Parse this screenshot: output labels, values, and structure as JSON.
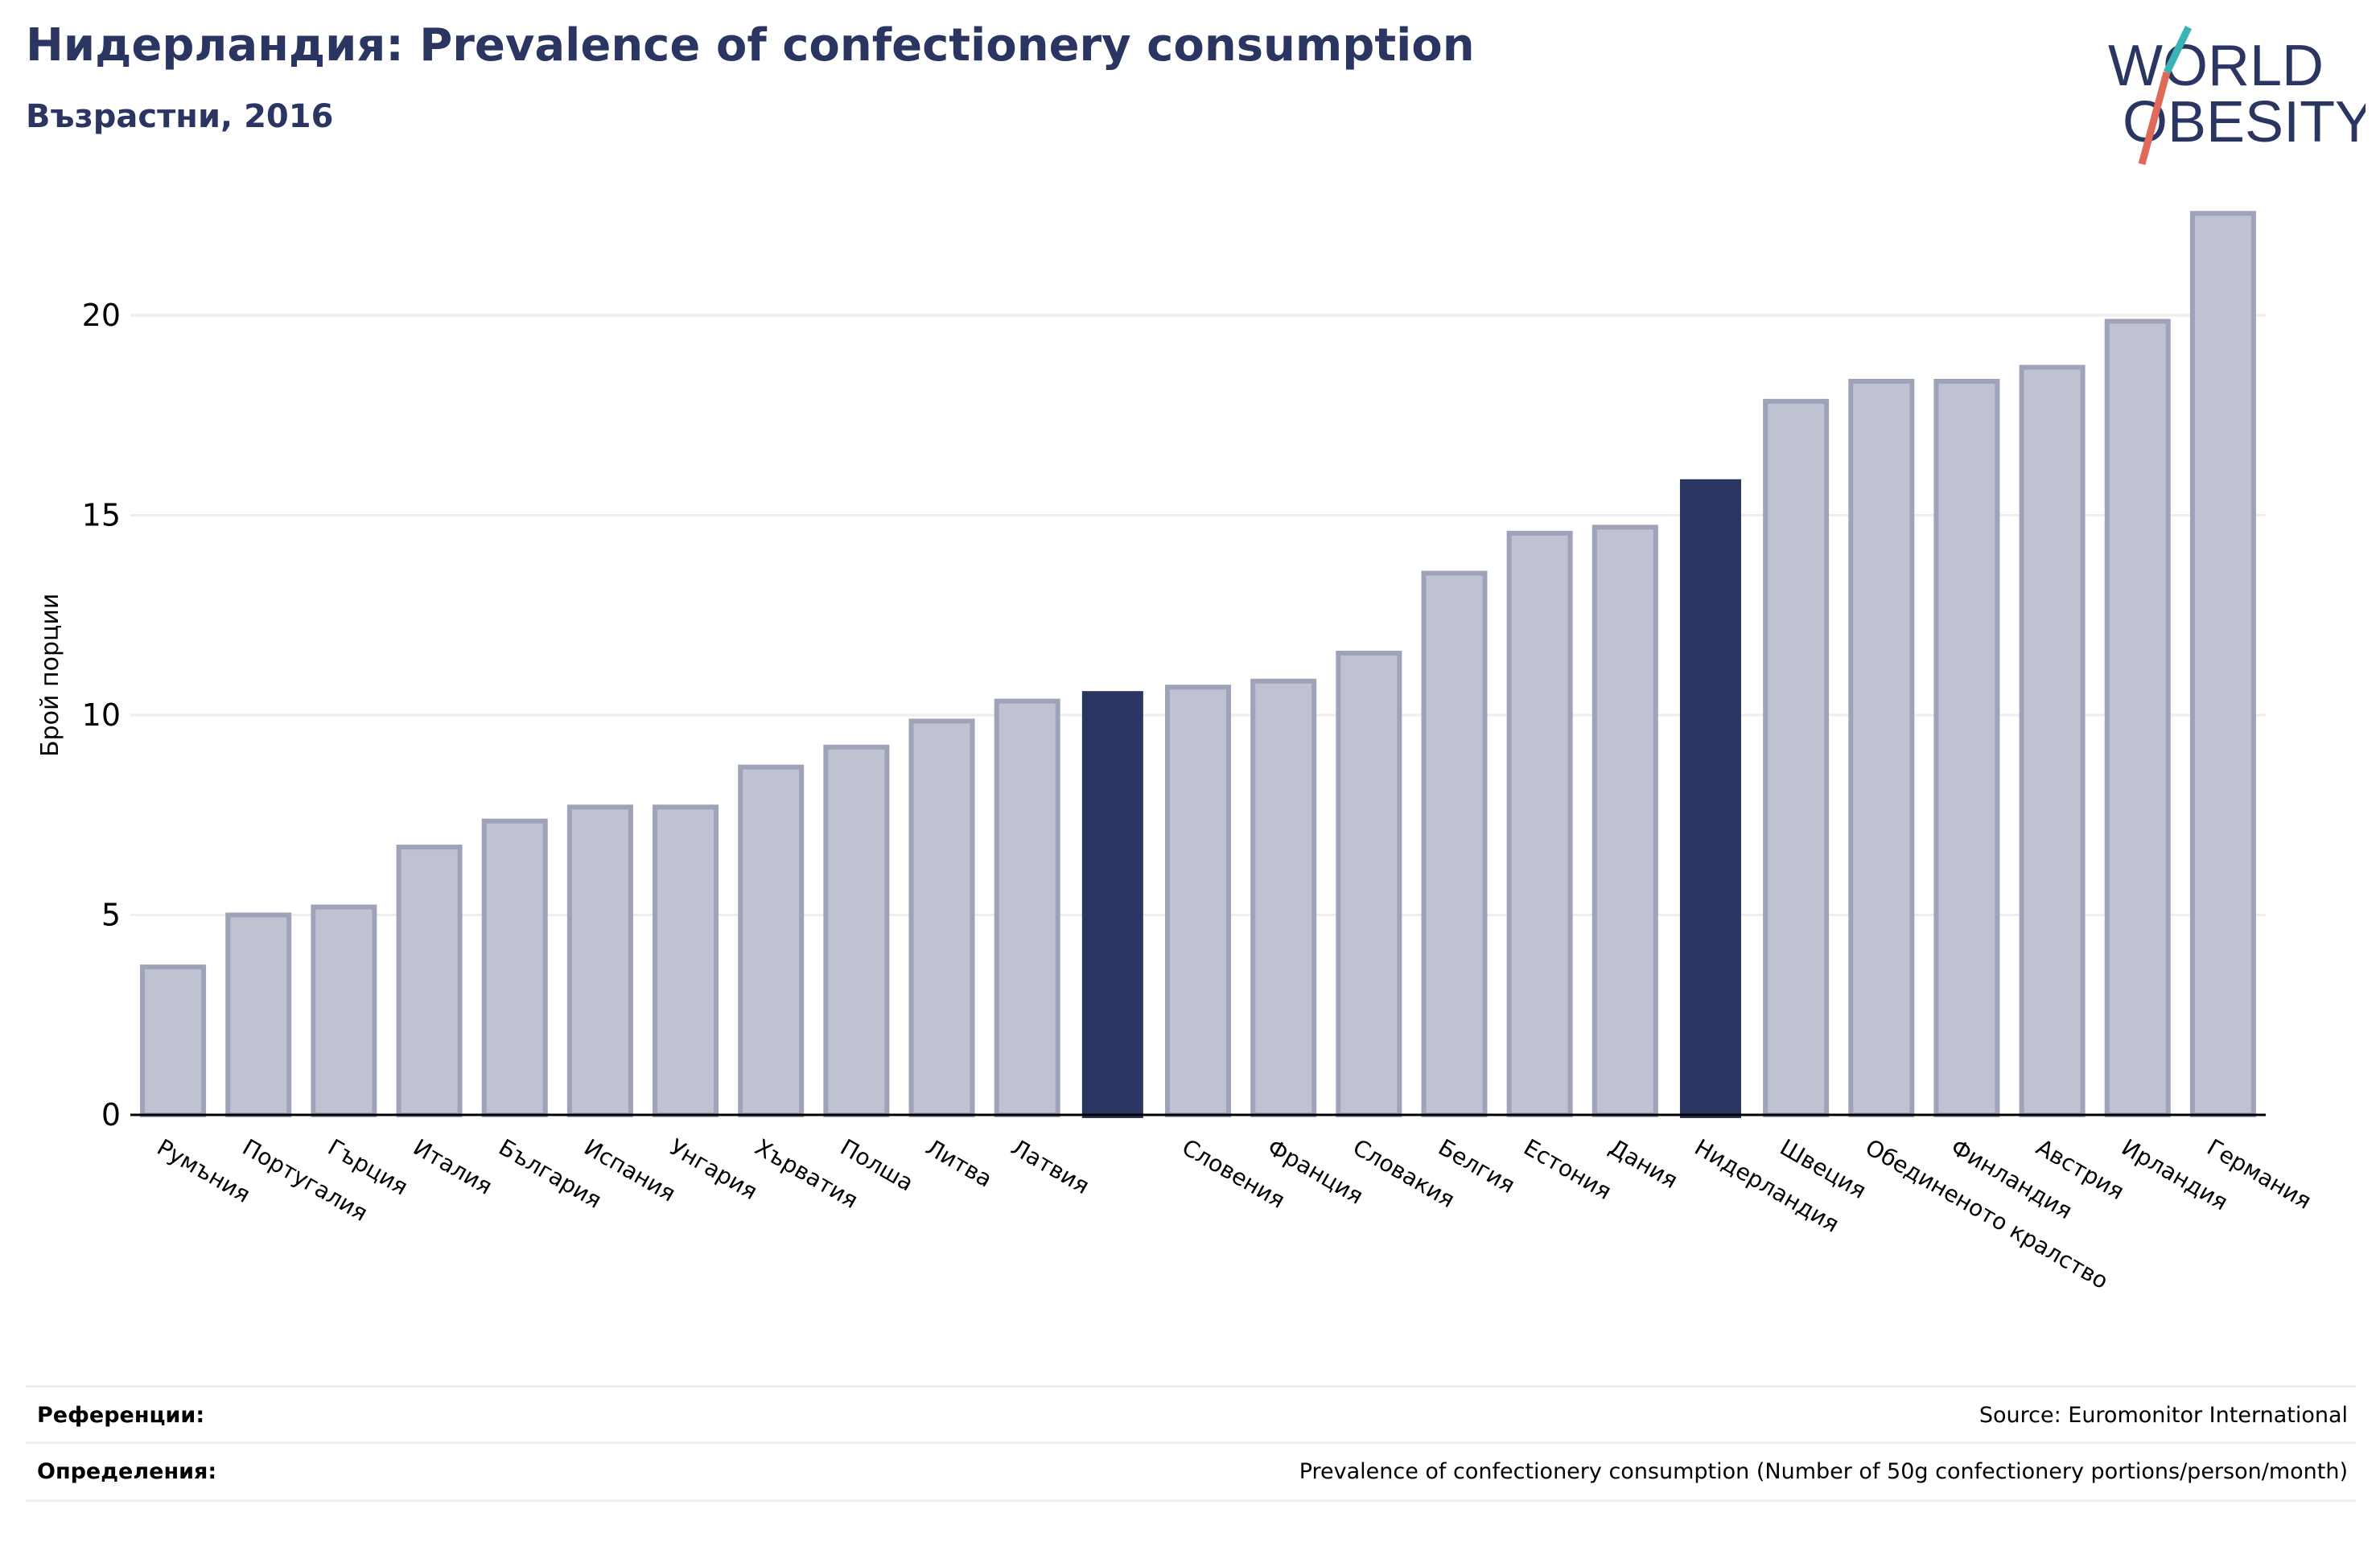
{
  "header": {
    "title": "Нидерландия: Prevalence of confectionery consumption",
    "subtitle": "Възрастни, 2016"
  },
  "logo": {
    "line1": "WORLD",
    "line2": "OBESITY",
    "colors": {
      "text": "#2a3561",
      "slash_teal": "#3ab3b6",
      "slash_coral": "#e06a5a"
    }
  },
  "chart_data": {
    "type": "bar",
    "ylabel": "Брой порции",
    "ylim": [
      0,
      22.5
    ],
    "yticks": [
      0,
      5,
      10,
      15,
      20
    ],
    "grid": true,
    "categories": [
      "Румъния",
      "Португалия",
      "Гърция",
      "Италия",
      "България",
      "Испания",
      "Унгария",
      "Хърватия",
      "Полша",
      "Литва",
      "Латвия",
      "",
      "Словения",
      "Франция",
      "Словакия",
      "Белгия",
      "Естония",
      "Дания",
      "Нидерландия",
      "Швеция",
      "Обединеното кралство",
      "Финландия",
      "Австрия",
      "Ирландия",
      "Германия"
    ],
    "values": [
      3.7,
      5.0,
      5.2,
      6.7,
      7.35,
      7.7,
      7.7,
      8.7,
      9.2,
      9.85,
      10.35,
      10.6,
      10.7,
      10.85,
      11.55,
      13.55,
      14.55,
      14.7,
      15.9,
      17.85,
      18.35,
      18.35,
      18.7,
      19.85,
      22.55
    ],
    "highlighted": [
      11,
      18
    ],
    "colors": {
      "bar": "#bfc2d0",
      "bar_edge": "#9ea3b9",
      "highlight": "#2a3561",
      "grid": "#eeeeee",
      "axis": "#000000"
    }
  },
  "footer": {
    "references_label": "Референции:",
    "references_value": "Source: Euromonitor International",
    "definitions_label": "Определения:",
    "definitions_value": "Prevalence of confectionery consumption (Number of 50g confectionery portions/person/month)"
  }
}
